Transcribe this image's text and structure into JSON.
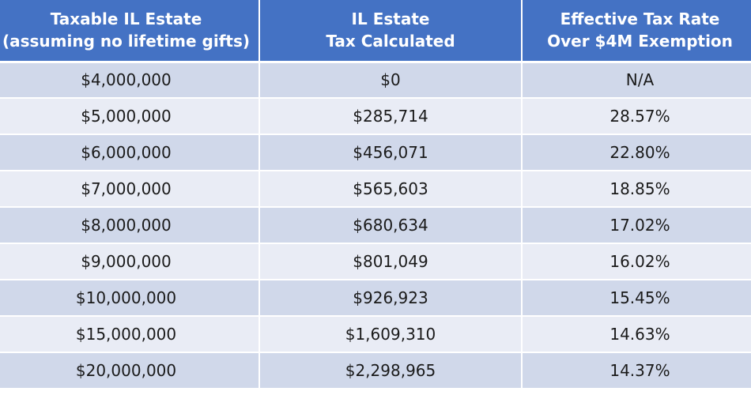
{
  "table": {
    "headers": [
      [
        "Taxable IL Estate",
        "(assuming no lifetime gifts)"
      ],
      [
        "IL Estate",
        "Tax Calculated"
      ],
      [
        "Effective Tax Rate",
        "Over $4M Exemption"
      ]
    ],
    "rows": [
      [
        "$4,000,000",
        "$0",
        "N/A"
      ],
      [
        "$5,000,000",
        "$285,714",
        "28.57%"
      ],
      [
        "$6,000,000",
        "$456,071",
        "22.80%"
      ],
      [
        "$7,000,000",
        "$565,603",
        "18.85%"
      ],
      [
        "$8,000,000",
        "$680,634",
        "17.02%"
      ],
      [
        "$9,000,000",
        "$801,049",
        "16.02%"
      ],
      [
        "$10,000,000",
        "$926,923",
        "15.45%"
      ],
      [
        "$15,000,000",
        "$1,609,310",
        "14.63%"
      ],
      [
        "$20,000,000",
        "$2,298,965",
        "14.37%"
      ]
    ]
  },
  "colors": {
    "header_bg": "#4472c4",
    "row_odd": "#d0d8ea",
    "row_even": "#e9ecf5"
  }
}
